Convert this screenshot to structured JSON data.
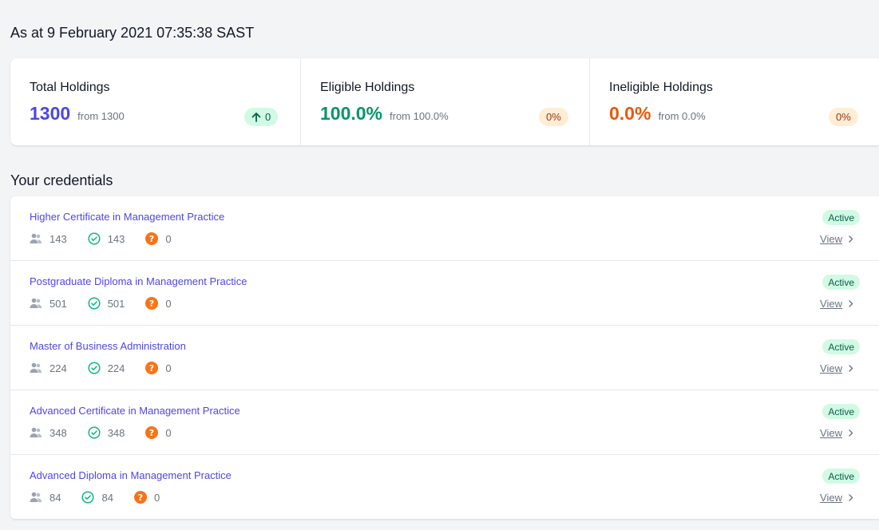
{
  "as_at": "As at 9 February 2021 07:35:38 SAST",
  "stats": [
    {
      "label": "Total Holdings",
      "value": "1300",
      "from": "from 1300",
      "change": "0",
      "change_icon": "arrow-up-icon",
      "color": "#4f46e5"
    },
    {
      "label": "Eligible Holdings",
      "value": "100.0%",
      "from": "from 100.0%",
      "change": "0%",
      "color": "#059669"
    },
    {
      "label": "Ineligible Holdings",
      "value": "0.0%",
      "from": "from 0.0%",
      "change": "0%",
      "color": "#ea580c"
    }
  ],
  "section_title": "Your credentials",
  "credentials": [
    {
      "title": "Higher Certificate in Management Practice",
      "holders": "143",
      "eligible": "143",
      "unknown": "0",
      "status": "Active",
      "view": "View"
    },
    {
      "title": "Postgraduate Diploma in Management Practice",
      "holders": "501",
      "eligible": "501",
      "unknown": "0",
      "status": "Active",
      "view": "View"
    },
    {
      "title": "Master of Business Administration",
      "holders": "224",
      "eligible": "224",
      "unknown": "0",
      "status": "Active",
      "view": "View"
    },
    {
      "title": "Advanced Certificate in Management Practice",
      "holders": "348",
      "eligible": "348",
      "unknown": "0",
      "status": "Active",
      "view": "View"
    },
    {
      "title": "Advanced Diploma in Management Practice",
      "holders": "84",
      "eligible": "84",
      "unknown": "0",
      "status": "Active",
      "view": "View"
    }
  ],
  "colors": {
    "accent": "#4f46e5",
    "success": "#059669",
    "warning": "#ea580c",
    "badge_green": "#d1fae5",
    "badge_orange": "#ffedd5"
  },
  "icons": {
    "holders": "users-icon",
    "eligible": "check-circle-icon",
    "unknown": "question-circle-icon",
    "view": "chevron-right-icon"
  }
}
